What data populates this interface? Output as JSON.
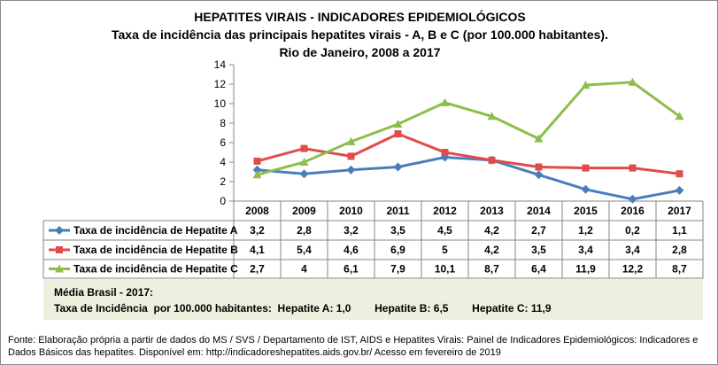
{
  "chart_data": {
    "type": "line",
    "title": "HEPATITES VIRAIS - INDICADORES EPIDEMIOLÓGICOS",
    "subtitle": "Taxa de incidência das principais hepatites virais - A, B e C (por 100.000 habitantes).",
    "subtitle2": "Rio de Janeiro, 2008 a 2017",
    "categories": [
      "2008",
      "2009",
      "2010",
      "2011",
      "2012",
      "2013",
      "2014",
      "2015",
      "2016",
      "2017"
    ],
    "ylim": [
      0,
      14
    ],
    "yticks": [
      0,
      2,
      4,
      6,
      8,
      10,
      12,
      14
    ],
    "grid": false,
    "legend": "data-table",
    "series": [
      {
        "name": "Taxa de incidência de Hepatite A",
        "color": "#4a7ebb",
        "marker": "diamond",
        "values": [
          3.2,
          2.8,
          3.2,
          3.5,
          4.5,
          4.2,
          2.7,
          1.2,
          0.2,
          1.1
        ],
        "labels": [
          "3,2",
          "2,8",
          "3,2",
          "3,5",
          "4,5",
          "4,2",
          "2,7",
          "1,2",
          "0,2",
          "1,1"
        ]
      },
      {
        "name": "Taxa de incidência de Hepatite B",
        "color": "#e04b4b",
        "marker": "square",
        "values": [
          4.1,
          5.4,
          4.6,
          6.9,
          5,
          4.2,
          3.5,
          3.4,
          3.4,
          2.8
        ],
        "labels": [
          "4,1",
          "5,4",
          "4,6",
          "6,9",
          "5",
          "4,2",
          "3,5",
          "3,4",
          "3,4",
          "2,8"
        ]
      },
      {
        "name": "Taxa de incidência de Hepatite C",
        "color": "#8cbf4a",
        "marker": "triangle",
        "values": [
          2.7,
          4,
          6.1,
          7.9,
          10.1,
          8.7,
          6.4,
          11.9,
          12.2,
          8.7
        ],
        "labels": [
          "2,7",
          "4",
          "6,1",
          "7,9",
          "10,1",
          "8,7",
          "6,4",
          "11,9",
          "12,2",
          "8,7"
        ]
      }
    ]
  },
  "media": {
    "line1": "Média Brasil - 2017:",
    "line2": "Taxa de Incidência  por 100.000 habitantes:  Hepatite A: 1,0        Hepatite B: 6,5        Hepatite C: 11,9"
  },
  "fonte": "Fonte: Elaboração própria a partir de dados do MS / SVS / Departamento de IST, AIDS e Hepatites Virais:  Painel de Indicadores Epidemiológicos: Indicadores e Dados Básicos das hepatites.  Disponível em: http://indicadoreshepatites.aids.gov.br/     Acesso em fevereiro de 2019"
}
